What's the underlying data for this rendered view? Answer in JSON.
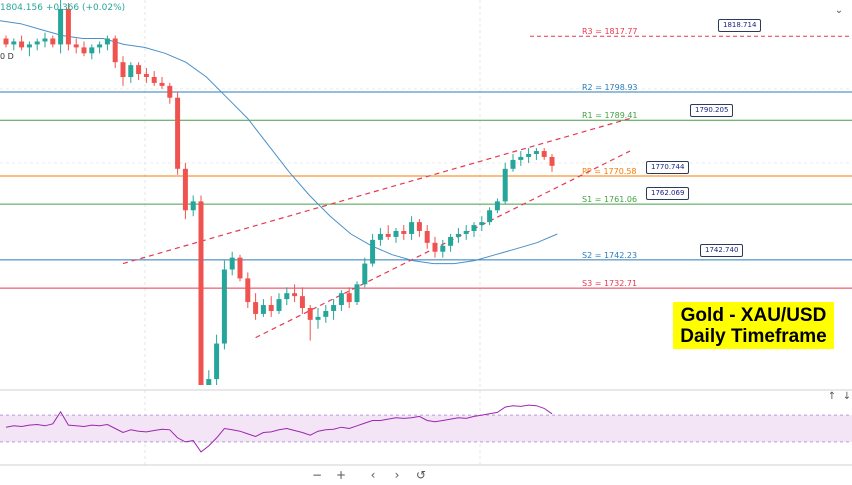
{
  "header": {
    "price": "1804.156",
    "change": "+0.366 (+0.02%)",
    "sub_label": "0 D"
  },
  "title_box": {
    "line1": "Gold - XAU/USD",
    "line2": "Daily Timeframe",
    "bg_color": "#ffff00"
  },
  "navigation": {
    "zoom_out": "−",
    "zoom_in": "+",
    "scroll_left": "‹",
    "scroll_right": "›",
    "reset": "↺"
  },
  "chart_data": {
    "type": "candlestick",
    "price_range": [
      1700,
      1830
    ],
    "pivot_levels": [
      {
        "key": "R3",
        "label": "R3 = 1817.77",
        "value": 1817.77,
        "color": "#e53950",
        "dashed": true
      },
      {
        "key": "R2",
        "label": "R2 = 1798.93",
        "value": 1798.93,
        "color": "#2b7bb9",
        "dashed": false
      },
      {
        "key": "R1",
        "label": "R1 = 1789.41",
        "value": 1789.41,
        "color": "#43a047",
        "dashed": false
      },
      {
        "key": "PP",
        "label": "PP = 1770.58",
        "value": 1770.58,
        "color": "#f57c00",
        "dashed": false
      },
      {
        "key": "S1",
        "label": "S1 = 1761.06",
        "value": 1761.06,
        "color": "#43a047",
        "dashed": false
      },
      {
        "key": "S2",
        "label": "S2 = 1742.23",
        "value": 1742.23,
        "color": "#2b7bb9",
        "dashed": false
      },
      {
        "key": "S3",
        "label": "S3 = 1732.71",
        "value": 1732.71,
        "color": "#e53950",
        "dashed": false
      }
    ],
    "price_badges": [
      {
        "label": "1818.714",
        "value": 1818.714
      },
      {
        "label": "1790.205",
        "value": 1790.205
      },
      {
        "label": "1770.744",
        "value": 1770.744
      },
      {
        "label": "1762.069",
        "value": 1762.069
      },
      {
        "label": "1742.740",
        "value": 1742.74
      }
    ],
    "candles": [
      [
        1817,
        1818,
        1814,
        1815
      ],
      [
        1815,
        1817,
        1813,
        1816
      ],
      [
        1816,
        1818,
        1813,
        1814
      ],
      [
        1814,
        1816,
        1811,
        1815
      ],
      [
        1815,
        1817,
        1813,
        1816
      ],
      [
        1816,
        1819,
        1814,
        1817
      ],
      [
        1817,
        1818,
        1814,
        1815
      ],
      [
        1815,
        1830,
        1812,
        1827
      ],
      [
        1827,
        1829,
        1813,
        1815
      ],
      [
        1815,
        1817,
        1812,
        1814
      ],
      [
        1814,
        1816,
        1811,
        1812
      ],
      [
        1812,
        1815,
        1810,
        1814
      ],
      [
        1814,
        1816,
        1812,
        1815
      ],
      [
        1815,
        1818,
        1813,
        1817
      ],
      [
        1817,
        1818,
        1807,
        1809
      ],
      [
        1809,
        1811,
        1801,
        1804
      ],
      [
        1804,
        1809,
        1802,
        1808
      ],
      [
        1808,
        1809,
        1803,
        1805
      ],
      [
        1805,
        1807,
        1802,
        1804
      ],
      [
        1804,
        1806,
        1801,
        1802
      ],
      [
        1802,
        1804,
        1800,
        1801
      ],
      [
        1801,
        1802,
        1795,
        1797
      ],
      [
        1797,
        1799,
        1771,
        1773
      ],
      [
        1773,
        1775,
        1756,
        1759
      ],
      [
        1759,
        1764,
        1757,
        1762
      ],
      [
        1762,
        1764,
        1683,
        1688
      ],
      [
        1688,
        1705,
        1686,
        1702
      ],
      [
        1702,
        1717,
        1700,
        1714
      ],
      [
        1714,
        1742,
        1712,
        1739
      ],
      [
        1739,
        1745,
        1737,
        1743
      ],
      [
        1743,
        1744,
        1735,
        1736
      ],
      [
        1736,
        1738,
        1726,
        1728
      ],
      [
        1728,
        1731,
        1722,
        1724
      ],
      [
        1724,
        1729,
        1723,
        1727
      ],
      [
        1727,
        1730,
        1723,
        1725
      ],
      [
        1725,
        1731,
        1724,
        1729
      ],
      [
        1729,
        1733,
        1727,
        1731
      ],
      [
        1731,
        1734,
        1728,
        1730
      ],
      [
        1730,
        1733,
        1724,
        1726
      ],
      [
        1726,
        1727,
        1715,
        1722
      ],
      [
        1722,
        1726,
        1719,
        1723
      ],
      [
        1723,
        1727,
        1721,
        1725
      ],
      [
        1725,
        1729,
        1722,
        1727
      ],
      [
        1727,
        1732,
        1725,
        1731
      ],
      [
        1731,
        1733,
        1726,
        1728
      ],
      [
        1728,
        1735,
        1727,
        1734
      ],
      [
        1734,
        1743,
        1733,
        1741
      ],
      [
        1741,
        1751,
        1740,
        1749
      ],
      [
        1749,
        1753,
        1747,
        1751
      ],
      [
        1751,
        1754,
        1749,
        1750
      ],
      [
        1750,
        1753,
        1748,
        1752
      ],
      [
        1752,
        1754,
        1749,
        1751
      ],
      [
        1751,
        1757,
        1749,
        1755
      ],
      [
        1755,
        1756,
        1750,
        1752
      ],
      [
        1752,
        1754,
        1746,
        1748
      ],
      [
        1748,
        1750,
        1743,
        1745
      ],
      [
        1745,
        1749,
        1743,
        1747
      ],
      [
        1747,
        1751,
        1745,
        1750
      ],
      [
        1750,
        1753,
        1748,
        1751
      ],
      [
        1751,
        1754,
        1749,
        1752
      ],
      [
        1752,
        1755,
        1750,
        1754
      ],
      [
        1754,
        1757,
        1752,
        1755
      ],
      [
        1755,
        1760,
        1754,
        1759
      ],
      [
        1759,
        1763,
        1758,
        1762
      ],
      [
        1762,
        1775,
        1761,
        1773
      ],
      [
        1773,
        1778,
        1772,
        1776
      ],
      [
        1776,
        1779,
        1774,
        1777
      ],
      [
        1777,
        1780,
        1775,
        1778
      ],
      [
        1778,
        1780,
        1776,
        1779
      ],
      [
        1779,
        1780,
        1776,
        1777
      ],
      [
        1777,
        1778,
        1772,
        1774
      ]
    ],
    "moving_average": {
      "color": "#4a90c8",
      "points": [
        [
          0,
          1823
        ],
        [
          12,
          1822
        ],
        [
          24,
          1820
        ],
        [
          36,
          1818
        ],
        [
          48,
          1817
        ],
        [
          60,
          1817
        ],
        [
          72,
          1815
        ],
        [
          84,
          1814
        ],
        [
          96,
          1812
        ],
        [
          108,
          1809
        ],
        [
          120,
          1804
        ],
        [
          132,
          1797
        ],
        [
          144,
          1790
        ],
        [
          156,
          1781
        ],
        [
          168,
          1772
        ],
        [
          180,
          1764
        ],
        [
          192,
          1757
        ],
        [
          204,
          1751
        ],
        [
          216,
          1747
        ],
        [
          228,
          1744
        ],
        [
          240,
          1742
        ],
        [
          252,
          1741
        ],
        [
          264,
          1741
        ],
        [
          276,
          1742
        ],
        [
          288,
          1744
        ],
        [
          300,
          1746
        ],
        [
          312,
          1748
        ],
        [
          324,
          1751
        ]
      ]
    },
    "trendlines": [
      {
        "name": "upper",
        "from": [
          15,
          1741
        ],
        "to": [
          80,
          1790
        ],
        "color": "#e53950"
      },
      {
        "name": "lower",
        "from": [
          32,
          1716
        ],
        "to": [
          80,
          1779
        ],
        "color": "#e53950"
      }
    ],
    "oscillator": {
      "range": [
        0,
        100
      ],
      "band": [
        30,
        70
      ],
      "color": "#9c27b0",
      "values": [
        52,
        54,
        53,
        55,
        56,
        54,
        57,
        75,
        55,
        54,
        53,
        55,
        54,
        56,
        50,
        44,
        48,
        46,
        45,
        47,
        49,
        48,
        36,
        30,
        32,
        15,
        24,
        36,
        50,
        48,
        46,
        42,
        38,
        44,
        45,
        48,
        50,
        47,
        44,
        40,
        46,
        48,
        49,
        52,
        50,
        54,
        58,
        62,
        62,
        64,
        66,
        65,
        66,
        68,
        62,
        60,
        62,
        64,
        66,
        65,
        68,
        70,
        72,
        74,
        82,
        84,
        83,
        85,
        84,
        80,
        72
      ]
    }
  }
}
